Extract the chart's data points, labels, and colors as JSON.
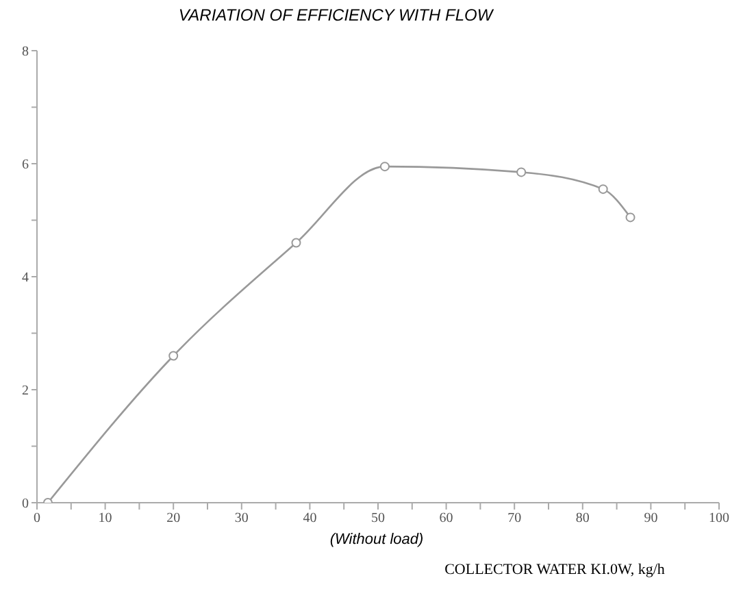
{
  "chart_data": {
    "type": "line",
    "title": "VARIATION OF EFFICIENCY WITH FLOW",
    "xlabel": "COLLECTOR WATER KI.0W, kg/h",
    "annotations": [
      "(Without load)"
    ],
    "x": [
      1.6,
      20,
      38,
      51,
      71,
      83,
      87
    ],
    "series": [
      {
        "color": "#999999",
        "values": [
          0,
          2.6,
          4.6,
          5.95,
          5.85,
          5.55,
          5.05
        ]
      }
    ],
    "xlim": [
      0,
      100
    ],
    "ylim": [
      0,
      8
    ],
    "xticks": [
      0,
      {
        "value": 5,
        "label": null
      },
      10,
      {
        "value": 15,
        "label": null
      },
      20,
      {
        "value": 25,
        "label": null
      },
      30,
      {
        "value": 35,
        "label": null
      },
      40,
      {
        "value": 45,
        "label": null
      },
      50,
      {
        "value": 55,
        "label": null
      },
      60,
      {
        "value": 65,
        "label": null
      },
      70,
      {
        "value": 75,
        "label": null
      },
      80,
      {
        "value": 85,
        "label": null
      },
      90,
      {
        "value": 95,
        "label": null
      },
      100
    ],
    "yticks": [
      0,
      {
        "value": 1,
        "label": null
      },
      2,
      {
        "value": 3,
        "label": null
      },
      4,
      {
        "value": 5,
        "label": null
      },
      6,
      {
        "value": 7,
        "label": null
      },
      8
    ],
    "grid": false,
    "legend": false,
    "marker": "circle",
    "line_style": "solid"
  }
}
